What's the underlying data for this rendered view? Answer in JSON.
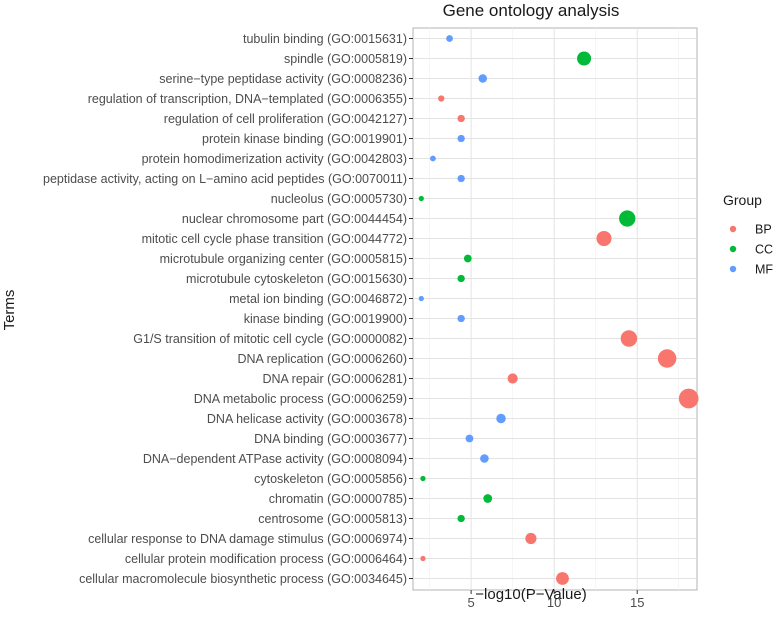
{
  "chart_data": {
    "type": "scatter",
    "title": "Gene ontology analysis",
    "xlabel": "−log10(P−Value)",
    "ylabel": "Terms",
    "xlim": [
      1.5,
      18.6
    ],
    "xticks": [
      5,
      10,
      15
    ],
    "xtick_labels": [
      "5",
      "10",
      "15"
    ],
    "grid": true,
    "legend": {
      "title": "Group",
      "position": "right",
      "entries": [
        {
          "name": "BP",
          "color": "#F8766D"
        },
        {
          "name": "CC",
          "color": "#00BA38"
        },
        {
          "name": "MF",
          "color": "#619CFF"
        }
      ]
    },
    "points": [
      {
        "term": "tubulin binding (GO:0015631)",
        "group": "MF",
        "x": 3.7
      },
      {
        "term": "spindle (GO:0005819)",
        "group": "CC",
        "x": 11.8
      },
      {
        "term": "serine−type peptidase activity (GO:0008236)",
        "group": "MF",
        "x": 5.7
      },
      {
        "term": "regulation of transcription, DNA−templated (GO:0006355)",
        "group": "BP",
        "x": 3.2
      },
      {
        "term": "regulation of cell proliferation (GO:0042127)",
        "group": "BP",
        "x": 4.4
      },
      {
        "term": "protein kinase binding (GO:0019901)",
        "group": "MF",
        "x": 4.4
      },
      {
        "term": "protein homodimerization activity (GO:0042803)",
        "group": "MF",
        "x": 2.7
      },
      {
        "term": "peptidase activity, acting on L−amino acid peptides (GO:0070011)",
        "group": "MF",
        "x": 4.4
      },
      {
        "term": "nucleolus (GO:0005730)",
        "group": "CC",
        "x": 2.0
      },
      {
        "term": "nuclear chromosome part (GO:0044454)",
        "group": "CC",
        "x": 14.4
      },
      {
        "term": "mitotic cell cycle phase transition (GO:0044772)",
        "group": "BP",
        "x": 13.0
      },
      {
        "term": "microtubule organizing center (GO:0005815)",
        "group": "CC",
        "x": 4.8
      },
      {
        "term": "microtubule cytoskeleton (GO:0015630)",
        "group": "CC",
        "x": 4.4
      },
      {
        "term": "metal ion binding (GO:0046872)",
        "group": "MF",
        "x": 2.0
      },
      {
        "term": "kinase binding (GO:0019900)",
        "group": "MF",
        "x": 4.4
      },
      {
        "term": "G1/S transition of mitotic cell cycle (GO:0000082)",
        "group": "BP",
        "x": 14.5
      },
      {
        "term": "DNA replication (GO:0006260)",
        "group": "BP",
        "x": 16.8
      },
      {
        "term": "DNA repair (GO:0006281)",
        "group": "BP",
        "x": 7.5
      },
      {
        "term": "DNA metabolic process (GO:0006259)",
        "group": "BP",
        "x": 18.1
      },
      {
        "term": "DNA helicase activity (GO:0003678)",
        "group": "MF",
        "x": 6.8
      },
      {
        "term": "DNA binding (GO:0003677)",
        "group": "MF",
        "x": 4.9
      },
      {
        "term": "DNA−dependent ATPase activity (GO:0008094)",
        "group": "MF",
        "x": 5.8
      },
      {
        "term": "cytoskeleton (GO:0005856)",
        "group": "CC",
        "x": 2.1
      },
      {
        "term": "chromatin (GO:0000785)",
        "group": "CC",
        "x": 6.0
      },
      {
        "term": "centrosome (GO:0005813)",
        "group": "CC",
        "x": 4.4
      },
      {
        "term": "cellular response to DNA damage stimulus (GO:0006974)",
        "group": "BP",
        "x": 8.6
      },
      {
        "term": "cellular protein modification process (GO:0006464)",
        "group": "BP",
        "x": 2.1
      },
      {
        "term": "cellular macromolecule biosynthetic process (GO:0034645)",
        "group": "BP",
        "x": 10.5
      }
    ]
  }
}
